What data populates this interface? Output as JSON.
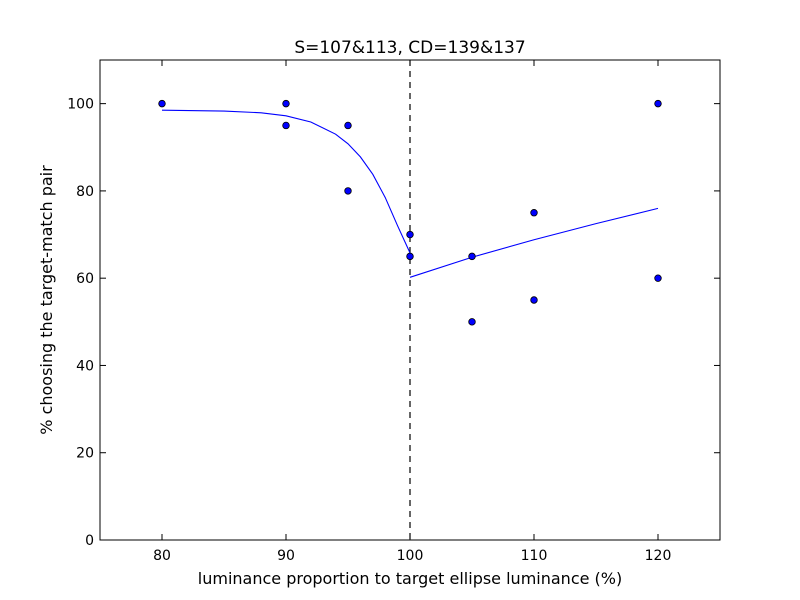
{
  "chart_data": {
    "type": "scatter",
    "title": "S=107&113, CD=139&137",
    "xlabel": "luminance proportion to target ellipse luminance (%)",
    "ylabel": "% choosing the target-match pair",
    "xlim": [
      75,
      125
    ],
    "ylim": [
      0,
      110
    ],
    "xticks": [
      80,
      90,
      100,
      110,
      120
    ],
    "yticks": [
      0,
      20,
      40,
      60,
      80,
      100
    ],
    "grid": false,
    "legend": "none",
    "reference_line": {
      "x": 100,
      "style": "dashed",
      "color": "#000000"
    },
    "points": [
      {
        "x": 80,
        "y": 100
      },
      {
        "x": 90,
        "y": 100
      },
      {
        "x": 90,
        "y": 95
      },
      {
        "x": 95,
        "y": 95
      },
      {
        "x": 95,
        "y": 80
      },
      {
        "x": 100,
        "y": 70
      },
      {
        "x": 100,
        "y": 65
      },
      {
        "x": 105,
        "y": 65
      },
      {
        "x": 105,
        "y": 50
      },
      {
        "x": 110,
        "y": 75
      },
      {
        "x": 110,
        "y": 55
      },
      {
        "x": 120,
        "y": 100
      },
      {
        "x": 120,
        "y": 60
      }
    ],
    "fit_left": {
      "color": "#0000ff",
      "points": [
        {
          "x": 80,
          "y": 98.5
        },
        {
          "x": 85,
          "y": 98.3
        },
        {
          "x": 88,
          "y": 97.9
        },
        {
          "x": 90,
          "y": 97.2
        },
        {
          "x": 92,
          "y": 95.8
        },
        {
          "x": 94,
          "y": 93.0
        },
        {
          "x": 95,
          "y": 90.8
        },
        {
          "x": 96,
          "y": 87.8
        },
        {
          "x": 97,
          "y": 83.8
        },
        {
          "x": 98,
          "y": 78.5
        },
        {
          "x": 99,
          "y": 72.0
        },
        {
          "x": 100,
          "y": 65.8
        }
      ]
    },
    "fit_right": {
      "color": "#0000ff",
      "points": [
        {
          "x": 100,
          "y": 60.2
        },
        {
          "x": 105,
          "y": 64.8
        },
        {
          "x": 110,
          "y": 68.8
        },
        {
          "x": 115,
          "y": 72.5
        },
        {
          "x": 120,
          "y": 76.0
        }
      ]
    },
    "point_color": "#0000ff"
  }
}
